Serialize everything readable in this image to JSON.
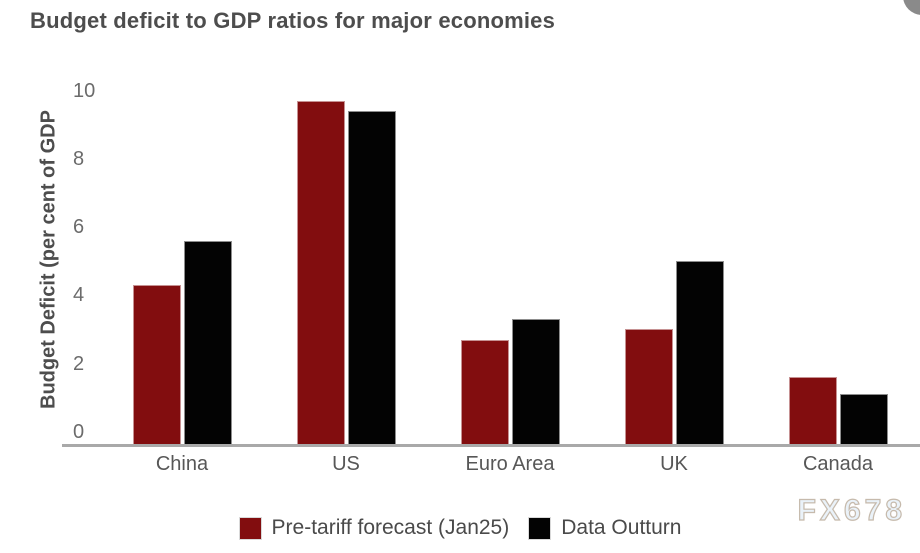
{
  "watermark": {
    "text": "FX678"
  },
  "colors": {
    "bg": "#ffffff",
    "title-color": "#4d4d4d",
    "ylabel-color": "#4d4d4d",
    "tick-color": "#6b6b6b",
    "cat-color": "#575757",
    "legend-color": "#4a4a4a",
    "axis-color": "#a9a9a9",
    "watermark-fill": "#eaf2f9",
    "watermark-stroke": "#c6baac",
    "corner-circle": "#8a8a8a",
    "series-pre-tariff": "#820d0f",
    "series-outturn": "#030303"
  },
  "chart_data": {
    "type": "bar",
    "title": "Budget deficit to GDP ratios for major economies",
    "ylabel": "Budget Deficit (per cent of GDP",
    "xlabel": "",
    "categories": [
      "China",
      "US",
      "Euro Area",
      "UK",
      "Canada"
    ],
    "series": [
      {
        "name": "Pre-tariff forecast (Jan25)",
        "color": "#820d0f",
        "values": [
          4.3,
          9.7,
          2.7,
          3.0,
          1.6
        ]
      },
      {
        "name": "Data Outturn",
        "color": "#030303",
        "values": [
          5.6,
          9.4,
          3.3,
          5.0,
          1.1
        ]
      }
    ],
    "yticks": [
      0,
      2,
      4,
      6,
      8,
      10
    ],
    "ylim": [
      0,
      10
    ],
    "grid": false,
    "legend_position": "bottom"
  }
}
